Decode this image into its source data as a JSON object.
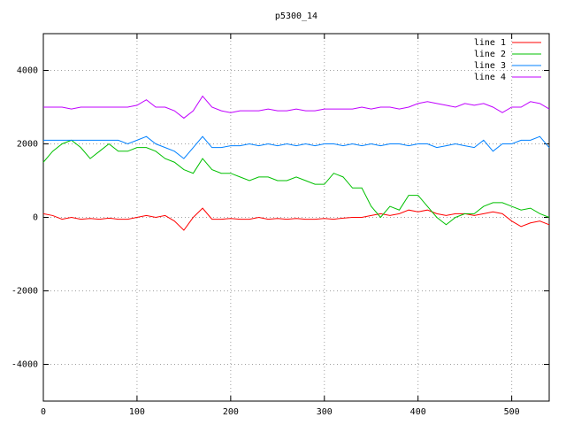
{
  "chart_data": {
    "type": "line",
    "title": "p5300_14",
    "x": [
      0,
      10,
      20,
      30,
      40,
      50,
      60,
      70,
      80,
      90,
      100,
      110,
      120,
      130,
      140,
      150,
      160,
      170,
      180,
      190,
      200,
      210,
      220,
      230,
      240,
      250,
      260,
      270,
      280,
      290,
      300,
      310,
      320,
      330,
      340,
      350,
      360,
      370,
      380,
      390,
      400,
      410,
      420,
      430,
      440,
      450,
      460,
      470,
      480,
      490,
      500,
      510,
      520,
      530,
      540
    ],
    "series": [
      {
        "name": "line 1",
        "color": "#ff0000",
        "values": [
          100,
          50,
          -50,
          0,
          -50,
          -30,
          -50,
          -20,
          -50,
          -50,
          0,
          50,
          0,
          50,
          -100,
          -350,
          0,
          250,
          -50,
          -50,
          -30,
          -50,
          -50,
          0,
          -50,
          -30,
          -50,
          -30,
          -50,
          -50,
          -30,
          -50,
          -20,
          0,
          0,
          50,
          100,
          50,
          100,
          200,
          150,
          200,
          100,
          50,
          100,
          100,
          50,
          100,
          150,
          100,
          -100,
          -250,
          -150,
          -100,
          -200
        ]
      },
      {
        "name": "line 2",
        "color": "#00c000",
        "values": [
          1500,
          1800,
          2000,
          2100,
          1900,
          1600,
          1800,
          2000,
          1800,
          1800,
          1900,
          1900,
          1800,
          1600,
          1500,
          1300,
          1200,
          1600,
          1300,
          1200,
          1200,
          1100,
          1000,
          1100,
          1100,
          1000,
          1000,
          1100,
          1000,
          900,
          900,
          1200,
          1100,
          800,
          800,
          300,
          0,
          300,
          200,
          600,
          600,
          300,
          0,
          -200,
          0,
          100,
          100,
          300,
          400,
          400,
          300,
          200,
          250,
          100,
          0
        ]
      },
      {
        "name": "line 3",
        "color": "#0080ff",
        "values": [
          2100,
          2100,
          2100,
          2100,
          2100,
          2100,
          2100,
          2100,
          2100,
          2000,
          2100,
          2200,
          2000,
          1900,
          1800,
          1600,
          1900,
          2200,
          1900,
          1900,
          1950,
          1950,
          2000,
          1950,
          2000,
          1950,
          2000,
          1950,
          2000,
          1950,
          2000,
          2000,
          1950,
          2000,
          1950,
          2000,
          1950,
          2000,
          2000,
          1950,
          2000,
          2000,
          1900,
          1950,
          2000,
          1950,
          1900,
          2100,
          1800,
          2000,
          2000,
          2100,
          2100,
          2200,
          1900
        ]
      },
      {
        "name": "line 4",
        "color": "#c000ff",
        "values": [
          3000,
          3000,
          3000,
          2950,
          3000,
          3000,
          3000,
          3000,
          3000,
          3000,
          3050,
          3200,
          3000,
          3000,
          2900,
          2700,
          2900,
          3300,
          3000,
          2900,
          2850,
          2900,
          2900,
          2900,
          2950,
          2900,
          2900,
          2950,
          2900,
          2900,
          2950,
          2950,
          2950,
          2950,
          3000,
          2950,
          3000,
          3000,
          2950,
          3000,
          3100,
          3150,
          3100,
          3050,
          3000,
          3100,
          3050,
          3100,
          3000,
          2850,
          3000,
          3000,
          3150,
          3100,
          2950
        ]
      }
    ],
    "xlim": [
      0,
      540
    ],
    "xticks": [
      0,
      100,
      200,
      300,
      400,
      500
    ],
    "ylim": [
      -5000,
      5000
    ],
    "yticks": [
      -4000,
      -2000,
      0,
      2000,
      4000
    ],
    "grid": true,
    "legend": "top-right"
  }
}
